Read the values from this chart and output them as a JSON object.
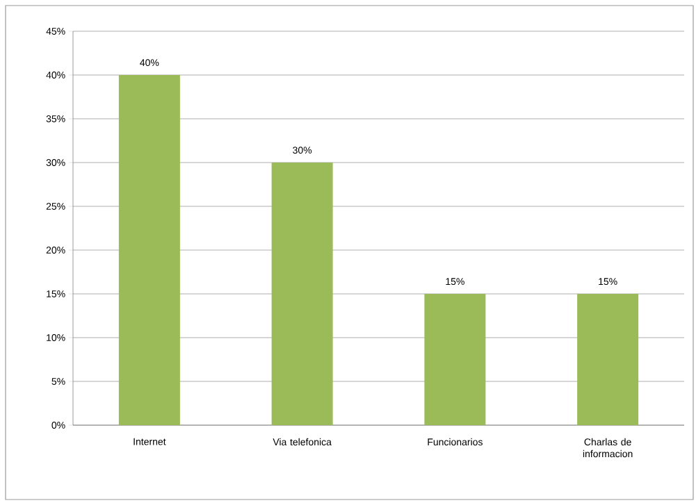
{
  "chart_data": {
    "type": "bar",
    "categories": [
      "Internet",
      "Via telefonica",
      "Funcionarios",
      "Charlas de informacion"
    ],
    "values": [
      40,
      30,
      15,
      15
    ],
    "value_labels": [
      "40%",
      "30%",
      "15%",
      "15%"
    ],
    "color": "#9bbb59",
    "ylim": [
      0,
      45
    ],
    "yticks": [
      {
        "value": 0,
        "label": "0%"
      },
      {
        "value": 5,
        "label": "5%"
      },
      {
        "value": 10,
        "label": "10%"
      },
      {
        "value": 15,
        "label": "15%"
      },
      {
        "value": 20,
        "label": "20%"
      },
      {
        "value": 25,
        "label": "25%"
      },
      {
        "value": 30,
        "label": "30%"
      },
      {
        "value": 35,
        "label": "35%"
      },
      {
        "value": 40,
        "label": "40%"
      },
      {
        "value": 45,
        "label": "45%"
      }
    ],
    "grid": "y"
  }
}
